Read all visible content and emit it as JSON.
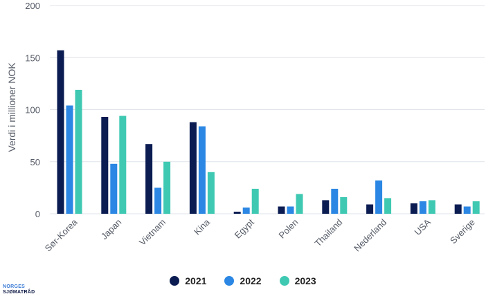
{
  "chart_data": {
    "type": "bar",
    "ylabel": "Verdi i millioner NOK",
    "xlabel": "",
    "ylim": [
      0,
      200
    ],
    "yticks": [
      0,
      50,
      100,
      150,
      200
    ],
    "grid": true,
    "legend_position": "bottom",
    "categories": [
      "Sør-Korea",
      "Japan",
      "Vietnam",
      "Kina",
      "Egypt",
      "Polen",
      "Thailand",
      "Nederland",
      "USA",
      "Sverige"
    ],
    "series": [
      {
        "name": "2021",
        "color": "#0b1c52",
        "values": [
          157,
          93,
          67,
          88,
          2,
          7,
          13,
          9,
          10,
          9
        ]
      },
      {
        "name": "2022",
        "color": "#2b87e3",
        "values": [
          104,
          48,
          25,
          84,
          6,
          7,
          24,
          32,
          12,
          7
        ]
      },
      {
        "name": "2023",
        "color": "#3fc9b2",
        "values": [
          119,
          94,
          50,
          40,
          24,
          19,
          16,
          15,
          13,
          12
        ]
      }
    ]
  },
  "logo": {
    "line1": "NORGES",
    "line2": "SJØMATRÅD"
  }
}
